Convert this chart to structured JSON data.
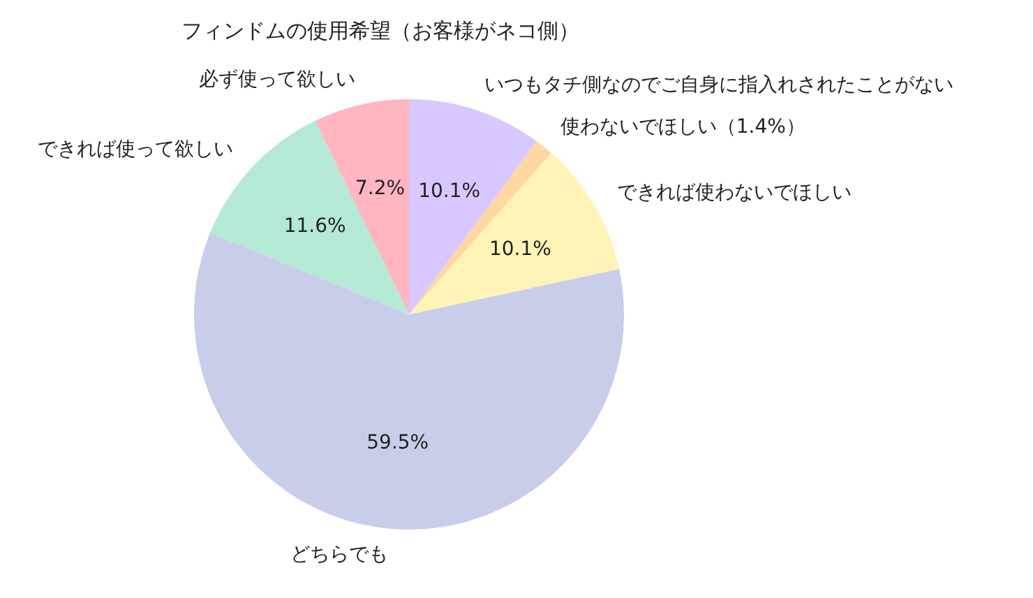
{
  "chart_data": {
    "type": "pie",
    "title": "フィンドムの使用希望（お客様がネコ側）",
    "categories": [
      "必ず使って欲しい",
      "できれば使って欲しい",
      "どちらでも",
      "できれば使わないでほしい",
      "使わないでほしい（1.4%）",
      "いつもタチ側なのでご自身に指入れされたことがない"
    ],
    "values": [
      7.2,
      11.6,
      59.5,
      10.1,
      1.4,
      10.1
    ],
    "value_labels": [
      "7.2%",
      "11.6%",
      "59.5%",
      "10.1%",
      null,
      "10.1%"
    ],
    "colors": [
      "#ffb6c1",
      "#b3e9d5",
      "#c8cee9",
      "#fff3b8",
      "#ffd8a1",
      "#d8c8ff"
    ],
    "legend": false
  }
}
